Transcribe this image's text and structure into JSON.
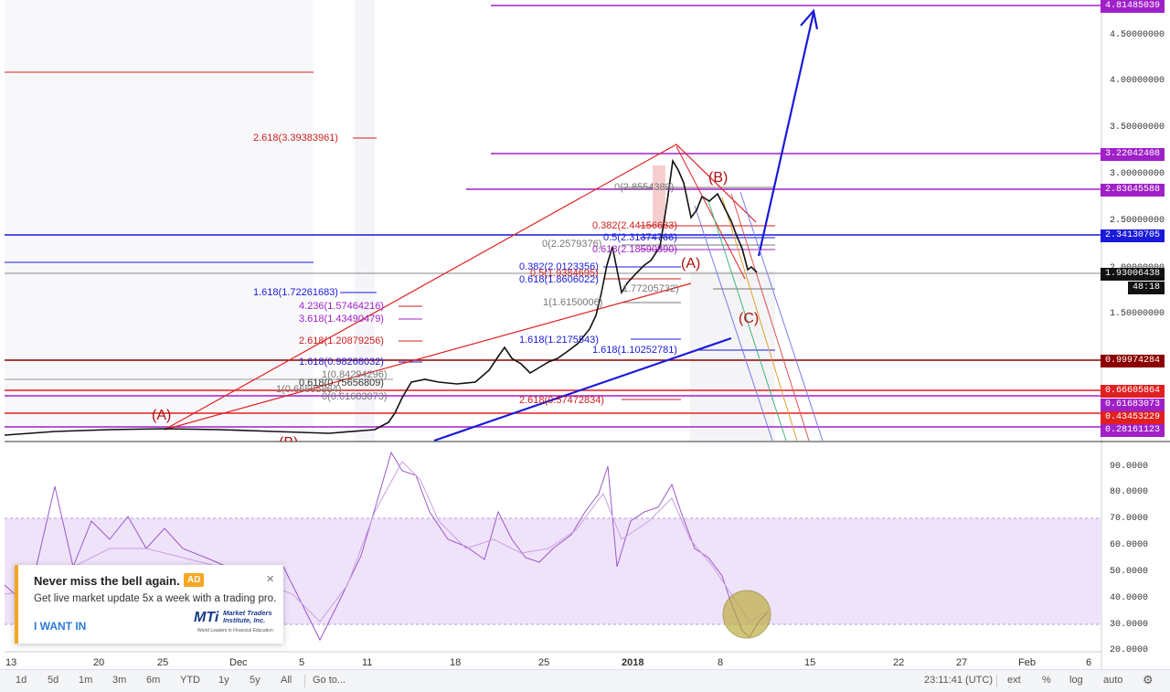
{
  "price_axis_labels": [
    "4.50000000",
    "4.00000000",
    "3.50000000",
    "3.00000000",
    "2.50000000",
    "2.00000000",
    "1.50000000"
  ],
  "rsi_axis_labels": [
    "90.0000",
    "80.0000",
    "70.0000",
    "60.0000",
    "50.0000",
    "40.0000",
    "30.0000",
    "20.0000"
  ],
  "time_axis_labels": [
    "13",
    "20",
    "25",
    "Dec",
    "5",
    "11",
    "18",
    "25",
    "2018",
    "8",
    "15",
    "22",
    "27",
    "Feb",
    "6"
  ],
  "price_tags": {
    "p1": "4.81485039",
    "p2": "3.22042408",
    "p3": "2.83645588",
    "p4": "2.34130705",
    "p5": "1.93006438",
    "p6": "48:18",
    "p7": "0.99974284",
    "p8": "0.66605864",
    "p9": "0.61683073",
    "p10": "0.43453229",
    "p11": "0.28161123"
  },
  "fib_labels": {
    "f1": "2.618(3.39383961)",
    "f2": "0(2.8554389)",
    "f3": "0.382(2.44156683)",
    "f4": "0(2.2579376)",
    "f5": "0.5(2.31374766)",
    "f6": "0.618(2.18590890)",
    "f7": "0.382(2.0123356)",
    "f8": "0.5(1.9384695)",
    "f9": "0.618(1.8606022)",
    "f10": "1.77205732)",
    "f11": "1.618(1.72261683)",
    "f12": "1(1.6150006)",
    "f13": "4.236(1.57464216)",
    "f14": "3.618(1.43490479)",
    "f15": "2.618(1.20879256)",
    "f16": "1.618(1.2175543)",
    "f17": "1.618(1.10252781)",
    "f18": "1.618(0.98268032)",
    "f19": "1(0.84294296)",
    "f20": "0.618(0.75656809)",
    "f21": "1(0.66605864)",
    "f22": "0(0.61683073)",
    "f23": "2.618(0.57472834)"
  },
  "wave_labels": {
    "w1": "(A)",
    "w2": "(B)",
    "w3": "(A)",
    "w4": "(C)",
    "w5": "(B)"
  },
  "popup": {
    "title": "Never miss the bell again.",
    "badge": "AD",
    "close": "×",
    "body": "Get live market update 5x a week with a trading pro.",
    "cta": "I WANT IN",
    "logo_mark": "MTi",
    "logo_name": "Market Traders Institute, Inc.",
    "logo_tag": "World Leaders in Financial Education"
  },
  "toolbar": {
    "ranges": [
      "1d",
      "5d",
      "1m",
      "3m",
      "6m",
      "YTD",
      "1y",
      "5y",
      "All"
    ],
    "goto": "Go to...",
    "clock": "23:11:41 (UTC)",
    "ext": "ext",
    "pct": "%",
    "log": "log",
    "auto": "auto"
  },
  "colors": {
    "red": "#cc1f1f",
    "blue": "#1a1adb",
    "purple": "#a020c8",
    "dark": "#333333"
  }
}
